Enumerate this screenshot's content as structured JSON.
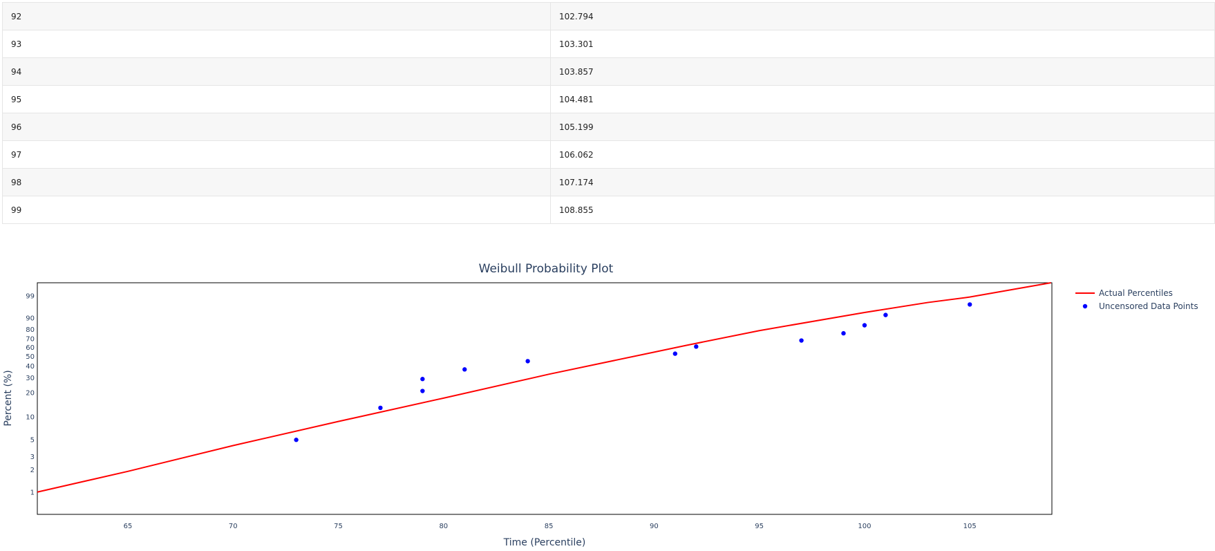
{
  "table": {
    "rows": [
      {
        "percentile": "92",
        "value": "102.794"
      },
      {
        "percentile": "93",
        "value": "103.301"
      },
      {
        "percentile": "94",
        "value": "103.857"
      },
      {
        "percentile": "95",
        "value": "104.481"
      },
      {
        "percentile": "96",
        "value": "105.199"
      },
      {
        "percentile": "97",
        "value": "106.062"
      },
      {
        "percentile": "98",
        "value": "107.174"
      },
      {
        "percentile": "99",
        "value": "108.855"
      }
    ]
  },
  "chart_data": {
    "type": "scatter",
    "title": "Weibull Probability Plot",
    "xlabel": "Time (Percentile)",
    "ylabel": "Percent (%)",
    "xlim": [
      60.7,
      108.9
    ],
    "ylim": [
      0.5,
      99.9
    ],
    "y_scale": "weibull probability",
    "grid": false,
    "legend_position": "right",
    "x_ticks": [
      "65",
      "70",
      "75",
      "80",
      "85",
      "90",
      "95",
      "100",
      "105"
    ],
    "y_ticks": [
      "1",
      "2",
      "3",
      "5",
      "10",
      "20",
      "30",
      "40",
      "50",
      "60",
      "70",
      "80",
      "90",
      "99"
    ],
    "series": [
      {
        "name": "Actual Percentiles",
        "kind": "line",
        "color": "#ff0000",
        "x": [
          60.7,
          65,
          70,
          75,
          80,
          85,
          90,
          91.5,
          95,
          100,
          103,
          105,
          108.855
        ],
        "y": [
          1,
          1.9,
          4.2,
          8.7,
          17.2,
          32.8,
          54.7,
          62.3,
          78.8,
          93.5,
          97.6,
          98.8,
          99.9
        ]
      },
      {
        "name": "Uncensored Data Points",
        "kind": "markers",
        "color": "#0000ff",
        "x": [
          73,
          77,
          79,
          79,
          81,
          84,
          91,
          92,
          97,
          99,
          100,
          101,
          105
        ],
        "y": [
          5,
          13,
          21,
          29,
          37,
          45,
          53,
          61,
          68,
          76,
          84,
          92,
          97
        ]
      }
    ]
  }
}
